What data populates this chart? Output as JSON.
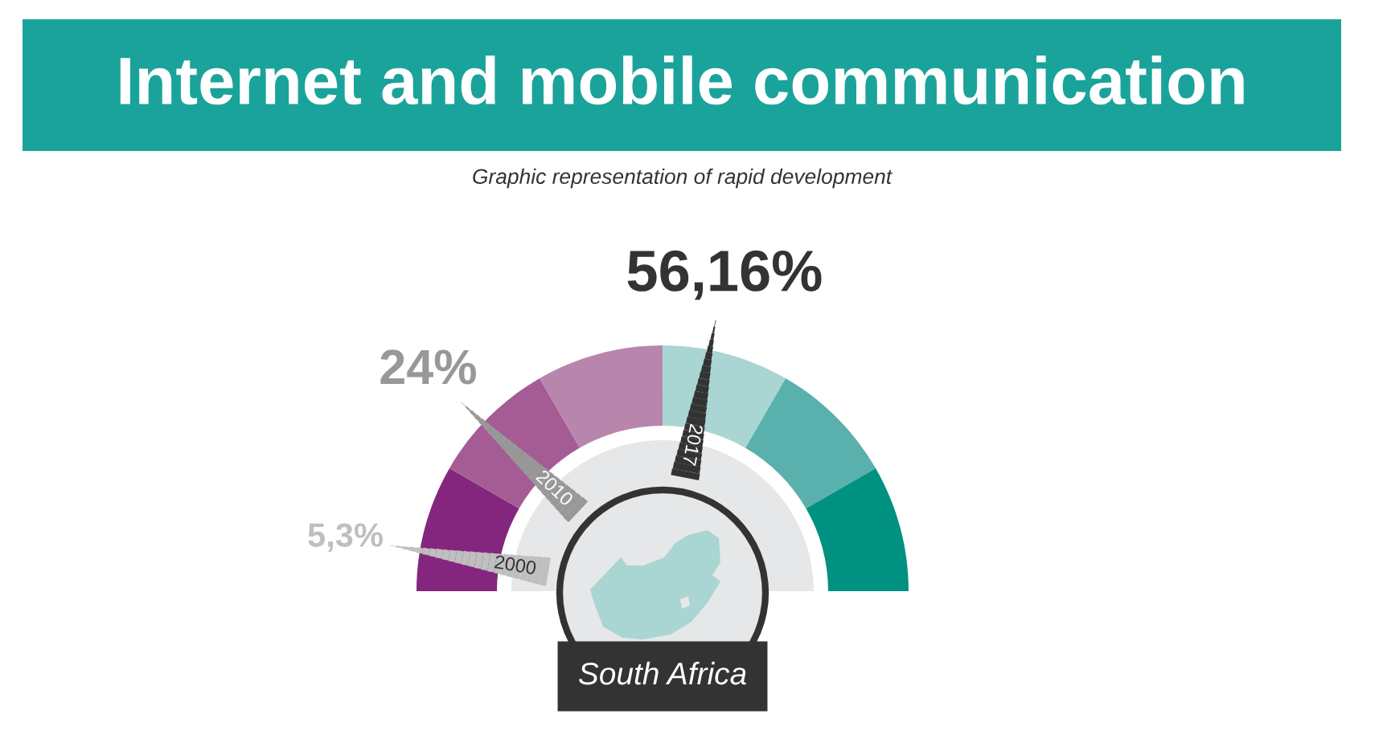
{
  "chart_data": [
    {
      "type": "donut",
      "title": "Internet and mobile communication",
      "subtitle": "Graphic representation of rapid development",
      "categories": [
        null,
        null,
        null,
        null,
        null,
        null
      ],
      "values": [
        16.67,
        16.67,
        16.67,
        16.67,
        16.66,
        16.66
      ],
      "colors": [
        "#84267e",
        "#a55c95",
        "#b886ac",
        "#a9d5d3",
        "#59b0ac",
        "#009180"
      ]
    },
    {
      "type": "other",
      "categories": [
        "2000",
        "2010",
        "2017"
      ],
      "values": [
        5.3,
        24,
        56.16
      ],
      "value_labels": [
        "5,3%",
        "24%",
        "56,16%"
      ],
      "colors": [
        "#bfbfbf",
        "#989898",
        "#333333"
      ],
      "annotations": [
        "South Africa"
      ]
    }
  ]
}
